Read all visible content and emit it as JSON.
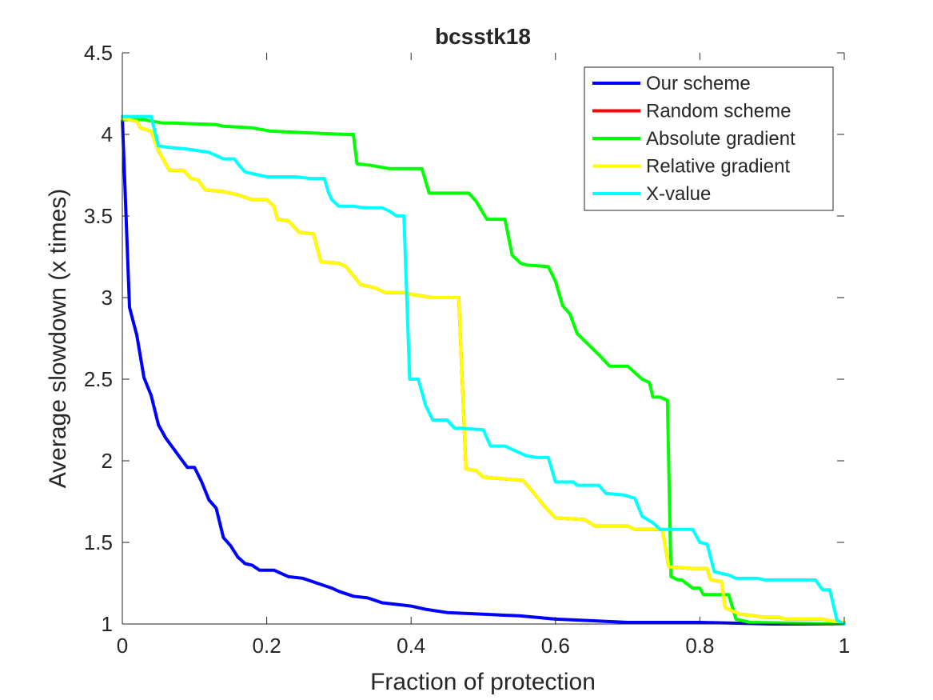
{
  "chart_data": {
    "type": "line",
    "title": "bcsstk18",
    "xlabel": "Fraction of protection",
    "ylabel": "Average slowdown (x times)",
    "xlim": [
      0,
      1
    ],
    "ylim": [
      1,
      4.5
    ],
    "xticks": [
      0,
      0.2,
      0.4,
      0.6,
      0.8,
      1
    ],
    "xtick_labels": [
      "0",
      "0.2",
      "0.4",
      "0.6",
      "0.8",
      "1"
    ],
    "yticks": [
      1,
      1.5,
      2,
      2.5,
      3,
      3.5,
      4,
      4.5
    ],
    "ytick_labels": [
      "1",
      "1.5",
      "2",
      "2.5",
      "3",
      "3.5",
      "4",
      "4.5"
    ],
    "grid": false,
    "legend_position": "top-right",
    "series": [
      {
        "name": "Our scheme",
        "color": "#0000ff",
        "points": [
          [
            0,
            4.1
          ],
          [
            0.01,
            2.94
          ],
          [
            0.02,
            2.77
          ],
          [
            0.03,
            2.51
          ],
          [
            0.04,
            2.4
          ],
          [
            0.05,
            2.22
          ],
          [
            0.06,
            2.14
          ],
          [
            0.07,
            2.08
          ],
          [
            0.08,
            2.02
          ],
          [
            0.09,
            1.96
          ],
          [
            0.1,
            1.96
          ],
          [
            0.11,
            1.87
          ],
          [
            0.12,
            1.76
          ],
          [
            0.13,
            1.71
          ],
          [
            0.14,
            1.53
          ],
          [
            0.15,
            1.48
          ],
          [
            0.16,
            1.41
          ],
          [
            0.17,
            1.37
          ],
          [
            0.18,
            1.36
          ],
          [
            0.19,
            1.33
          ],
          [
            0.21,
            1.33
          ],
          [
            0.23,
            1.29
          ],
          [
            0.25,
            1.28
          ],
          [
            0.27,
            1.25
          ],
          [
            0.29,
            1.22
          ],
          [
            0.3,
            1.2
          ],
          [
            0.32,
            1.17
          ],
          [
            0.34,
            1.16
          ],
          [
            0.36,
            1.13
          ],
          [
            0.38,
            1.12
          ],
          [
            0.4,
            1.11
          ],
          [
            0.42,
            1.09
          ],
          [
            0.45,
            1.07
          ],
          [
            0.5,
            1.06
          ],
          [
            0.55,
            1.05
          ],
          [
            0.6,
            1.03
          ],
          [
            0.65,
            1.02
          ],
          [
            0.7,
            1.01
          ],
          [
            0.8,
            1.01
          ],
          [
            0.9,
            1.0
          ],
          [
            1.0,
            1.0
          ]
        ]
      },
      {
        "name": "Random scheme",
        "color": "#ff0000",
        "points": [
          [
            0,
            4.1
          ],
          [
            0.02,
            4.08
          ],
          [
            0.025,
            4.04
          ],
          [
            0.04,
            4.02
          ],
          [
            0.05,
            3.9
          ],
          [
            0.065,
            3.78
          ],
          [
            0.085,
            3.78
          ],
          [
            0.095,
            3.73
          ],
          [
            0.105,
            3.72
          ],
          [
            0.115,
            3.66
          ],
          [
            0.14,
            3.65
          ],
          [
            0.16,
            3.63
          ],
          [
            0.18,
            3.6
          ],
          [
            0.2,
            3.6
          ],
          [
            0.21,
            3.56
          ],
          [
            0.215,
            3.48
          ],
          [
            0.23,
            3.47
          ],
          [
            0.245,
            3.4
          ],
          [
            0.265,
            3.39
          ],
          [
            0.275,
            3.22
          ],
          [
            0.3,
            3.21
          ],
          [
            0.31,
            3.19
          ],
          [
            0.33,
            3.08
          ],
          [
            0.35,
            3.06
          ],
          [
            0.365,
            3.03
          ],
          [
            0.39,
            3.03
          ],
          [
            0.4,
            3.02
          ],
          [
            0.43,
            3.0
          ],
          [
            0.466,
            3.0
          ],
          [
            0.476,
            1.95
          ],
          [
            0.49,
            1.94
          ],
          [
            0.5,
            1.9
          ],
          [
            0.555,
            1.88
          ],
          [
            0.565,
            1.83
          ],
          [
            0.585,
            1.72
          ],
          [
            0.6,
            1.65
          ],
          [
            0.64,
            1.64
          ],
          [
            0.655,
            1.6
          ],
          [
            0.7,
            1.6
          ],
          [
            0.71,
            1.58
          ],
          [
            0.748,
            1.58
          ],
          [
            0.757,
            1.35
          ],
          [
            0.79,
            1.34
          ],
          [
            0.81,
            1.34
          ],
          [
            0.815,
            1.27
          ],
          [
            0.83,
            1.26
          ],
          [
            0.835,
            1.1
          ],
          [
            0.845,
            1.08
          ],
          [
            0.855,
            1.06
          ],
          [
            0.875,
            1.05
          ],
          [
            0.89,
            1.04
          ],
          [
            0.91,
            1.04
          ],
          [
            0.92,
            1.03
          ],
          [
            0.97,
            1.03
          ],
          [
            0.98,
            1.02
          ],
          [
            1.0,
            1.01
          ]
        ]
      },
      {
        "name": "Absolute gradient",
        "color": "#00ff00",
        "points": [
          [
            0,
            4.09
          ],
          [
            0.03,
            4.09
          ],
          [
            0.055,
            4.07
          ],
          [
            0.07,
            4.07
          ],
          [
            0.13,
            4.06
          ],
          [
            0.14,
            4.05
          ],
          [
            0.18,
            4.04
          ],
          [
            0.205,
            4.02
          ],
          [
            0.255,
            4.01
          ],
          [
            0.31,
            4.0
          ],
          [
            0.32,
            4.0
          ],
          [
            0.325,
            3.82
          ],
          [
            0.345,
            3.81
          ],
          [
            0.37,
            3.79
          ],
          [
            0.415,
            3.79
          ],
          [
            0.425,
            3.64
          ],
          [
            0.48,
            3.64
          ],
          [
            0.49,
            3.59
          ],
          [
            0.505,
            3.48
          ],
          [
            0.53,
            3.48
          ],
          [
            0.54,
            3.26
          ],
          [
            0.552,
            3.21
          ],
          [
            0.56,
            3.2
          ],
          [
            0.59,
            3.19
          ],
          [
            0.6,
            3.1
          ],
          [
            0.61,
            2.95
          ],
          [
            0.62,
            2.9
          ],
          [
            0.63,
            2.78
          ],
          [
            0.66,
            2.65
          ],
          [
            0.675,
            2.58
          ],
          [
            0.7,
            2.58
          ],
          [
            0.72,
            2.5
          ],
          [
            0.73,
            2.48
          ],
          [
            0.735,
            2.39
          ],
          [
            0.745,
            2.39
          ],
          [
            0.755,
            2.37
          ],
          [
            0.76,
            1.29
          ],
          [
            0.77,
            1.27
          ],
          [
            0.775,
            1.27
          ],
          [
            0.79,
            1.22
          ],
          [
            0.8,
            1.22
          ],
          [
            0.805,
            1.18
          ],
          [
            0.84,
            1.18
          ],
          [
            0.85,
            1.03
          ],
          [
            0.87,
            1.01
          ],
          [
            1.0,
            1.0
          ]
        ]
      },
      {
        "name": "Relative gradient",
        "color": "#ffff00",
        "points": [
          [
            0,
            4.1
          ],
          [
            0.02,
            4.08
          ],
          [
            0.025,
            4.04
          ],
          [
            0.04,
            4.02
          ],
          [
            0.05,
            3.9
          ],
          [
            0.065,
            3.78
          ],
          [
            0.085,
            3.78
          ],
          [
            0.095,
            3.73
          ],
          [
            0.105,
            3.72
          ],
          [
            0.115,
            3.66
          ],
          [
            0.14,
            3.65
          ],
          [
            0.16,
            3.63
          ],
          [
            0.18,
            3.6
          ],
          [
            0.2,
            3.6
          ],
          [
            0.21,
            3.56
          ],
          [
            0.215,
            3.48
          ],
          [
            0.23,
            3.47
          ],
          [
            0.245,
            3.4
          ],
          [
            0.265,
            3.39
          ],
          [
            0.275,
            3.22
          ],
          [
            0.3,
            3.21
          ],
          [
            0.31,
            3.19
          ],
          [
            0.33,
            3.08
          ],
          [
            0.35,
            3.06
          ],
          [
            0.365,
            3.03
          ],
          [
            0.39,
            3.03
          ],
          [
            0.4,
            3.02
          ],
          [
            0.43,
            3.0
          ],
          [
            0.466,
            3.0
          ],
          [
            0.476,
            1.95
          ],
          [
            0.49,
            1.94
          ],
          [
            0.5,
            1.9
          ],
          [
            0.555,
            1.88
          ],
          [
            0.565,
            1.83
          ],
          [
            0.585,
            1.72
          ],
          [
            0.6,
            1.65
          ],
          [
            0.64,
            1.64
          ],
          [
            0.655,
            1.6
          ],
          [
            0.7,
            1.6
          ],
          [
            0.71,
            1.58
          ],
          [
            0.748,
            1.58
          ],
          [
            0.757,
            1.35
          ],
          [
            0.79,
            1.34
          ],
          [
            0.81,
            1.34
          ],
          [
            0.815,
            1.27
          ],
          [
            0.83,
            1.26
          ],
          [
            0.835,
            1.1
          ],
          [
            0.845,
            1.08
          ],
          [
            0.855,
            1.06
          ],
          [
            0.875,
            1.05
          ],
          [
            0.89,
            1.04
          ],
          [
            0.91,
            1.04
          ],
          [
            0.92,
            1.03
          ],
          [
            0.97,
            1.03
          ],
          [
            0.98,
            1.02
          ],
          [
            1.0,
            1.01
          ]
        ]
      },
      {
        "name": "X-value",
        "color": "#00ffff",
        "points": [
          [
            0,
            4.11
          ],
          [
            0.04,
            4.11
          ],
          [
            0.05,
            3.93
          ],
          [
            0.065,
            3.92
          ],
          [
            0.09,
            3.91
          ],
          [
            0.105,
            3.9
          ],
          [
            0.12,
            3.89
          ],
          [
            0.13,
            3.87
          ],
          [
            0.14,
            3.85
          ],
          [
            0.155,
            3.85
          ],
          [
            0.16,
            3.82
          ],
          [
            0.17,
            3.77
          ],
          [
            0.18,
            3.76
          ],
          [
            0.2,
            3.74
          ],
          [
            0.24,
            3.74
          ],
          [
            0.26,
            3.73
          ],
          [
            0.28,
            3.73
          ],
          [
            0.285,
            3.65
          ],
          [
            0.29,
            3.6
          ],
          [
            0.3,
            3.56
          ],
          [
            0.32,
            3.56
          ],
          [
            0.335,
            3.55
          ],
          [
            0.36,
            3.55
          ],
          [
            0.37,
            3.53
          ],
          [
            0.38,
            3.5
          ],
          [
            0.39,
            3.5
          ],
          [
            0.398,
            2.5
          ],
          [
            0.41,
            2.5
          ],
          [
            0.42,
            2.34
          ],
          [
            0.43,
            2.25
          ],
          [
            0.45,
            2.25
          ],
          [
            0.46,
            2.2
          ],
          [
            0.47,
            2.2
          ],
          [
            0.5,
            2.19
          ],
          [
            0.51,
            2.09
          ],
          [
            0.53,
            2.09
          ],
          [
            0.545,
            2.06
          ],
          [
            0.56,
            2.03
          ],
          [
            0.575,
            2.02
          ],
          [
            0.59,
            2.02
          ],
          [
            0.6,
            1.87
          ],
          [
            0.625,
            1.87
          ],
          [
            0.63,
            1.85
          ],
          [
            0.66,
            1.85
          ],
          [
            0.67,
            1.8
          ],
          [
            0.695,
            1.79
          ],
          [
            0.71,
            1.77
          ],
          [
            0.72,
            1.66
          ],
          [
            0.735,
            1.62
          ],
          [
            0.745,
            1.58
          ],
          [
            0.79,
            1.58
          ],
          [
            0.8,
            1.5
          ],
          [
            0.81,
            1.49
          ],
          [
            0.82,
            1.32
          ],
          [
            0.84,
            1.3
          ],
          [
            0.85,
            1.28
          ],
          [
            0.88,
            1.28
          ],
          [
            0.89,
            1.27
          ],
          [
            0.96,
            1.27
          ],
          [
            0.97,
            1.21
          ],
          [
            0.98,
            1.21
          ],
          [
            0.99,
            1.02
          ],
          [
            1.0,
            1.0
          ]
        ]
      }
    ]
  }
}
